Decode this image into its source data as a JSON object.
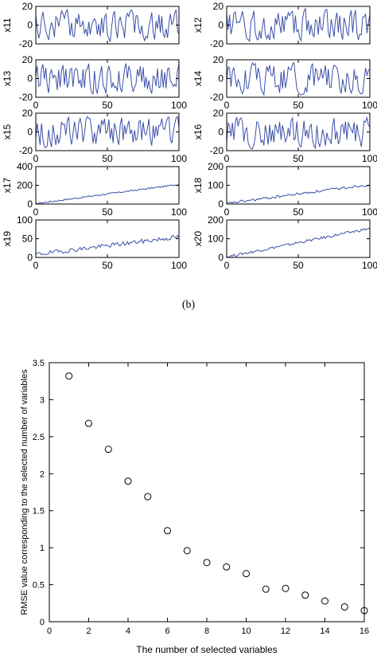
{
  "figure_caption": "(b)",
  "chart_data": [
    {
      "type": "line",
      "ylabel": "x11",
      "xlim": [
        0,
        100
      ],
      "ylim": [
        -20,
        20
      ],
      "xticks": [
        0,
        50,
        100
      ],
      "yticks": [
        -20,
        0,
        20
      ],
      "xtick_labels_visible": false,
      "pattern": "oscillating",
      "amplitude": 19,
      "seed": 11
    },
    {
      "type": "line",
      "ylabel": "x12",
      "xlim": [
        0,
        100
      ],
      "ylim": [
        -20,
        20
      ],
      "xticks": [
        0,
        50,
        100
      ],
      "yticks": [
        -20,
        0,
        20
      ],
      "xtick_labels_visible": false,
      "pattern": "oscillating",
      "amplitude": 19,
      "seed": 12
    },
    {
      "type": "line",
      "ylabel": "x13",
      "xlim": [
        0,
        100
      ],
      "ylim": [
        -20,
        20
      ],
      "xticks": [
        0,
        50,
        100
      ],
      "yticks": [
        -20,
        0,
        20
      ],
      "xtick_labels_visible": true,
      "pattern": "oscillating",
      "amplitude": 19,
      "seed": 13
    },
    {
      "type": "line",
      "ylabel": "x14",
      "xlim": [
        0,
        100
      ],
      "ylim": [
        -20,
        20
      ],
      "xticks": [
        0,
        50,
        100
      ],
      "yticks": [
        -20,
        0,
        20
      ],
      "xtick_labels_visible": true,
      "pattern": "oscillating",
      "amplitude": 19,
      "seed": 14
    },
    {
      "type": "line",
      "ylabel": "x15",
      "xlim": [
        0,
        100
      ],
      "ylim": [
        -20,
        20
      ],
      "xticks": [
        0,
        50,
        100
      ],
      "yticks": [
        -20,
        0,
        20
      ],
      "xtick_labels_visible": true,
      "pattern": "oscillating",
      "amplitude": 19,
      "seed": 15
    },
    {
      "type": "line",
      "ylabel": "x16",
      "xlim": [
        0,
        100
      ],
      "ylim": [
        -20,
        20
      ],
      "xticks": [
        0,
        50,
        100
      ],
      "yticks": [
        -20,
        0,
        20
      ],
      "xtick_labels_visible": true,
      "pattern": "oscillating",
      "amplitude": 19,
      "seed": 16
    },
    {
      "type": "line",
      "ylabel": "x17",
      "xlim": [
        0,
        100
      ],
      "ylim": [
        0,
        400
      ],
      "xticks": [
        0,
        50,
        100
      ],
      "yticks": [
        0,
        200,
        400
      ],
      "xtick_labels_visible": true,
      "pattern": "trend",
      "start": 5,
      "end": 210,
      "noise": 8,
      "seed": 17
    },
    {
      "type": "line",
      "ylabel": "x18",
      "xlim": [
        0,
        100
      ],
      "ylim": [
        0,
        200
      ],
      "xticks": [
        0,
        50,
        100
      ],
      "yticks": [
        0,
        100,
        200
      ],
      "xtick_labels_visible": true,
      "pattern": "trend",
      "start": 3,
      "end": 105,
      "noise": 7,
      "seed": 18
    },
    {
      "type": "line",
      "ylabel": "x19",
      "xlim": [
        0,
        100
      ],
      "ylim": [
        0,
        100
      ],
      "xticks": [
        0,
        50,
        100
      ],
      "yticks": [
        0,
        50,
        100
      ],
      "xtick_labels_visible": true,
      "pattern": "trend",
      "start": 8,
      "end": 55,
      "noise": 6,
      "seed": 19
    },
    {
      "type": "line",
      "ylabel": "x20",
      "xlim": [
        0,
        100
      ],
      "ylim": [
        0,
        200
      ],
      "xticks": [
        0,
        50,
        100
      ],
      "yticks": [
        0,
        100,
        200
      ],
      "xtick_labels_visible": true,
      "pattern": "trend",
      "start": 3,
      "end": 155,
      "noise": 7,
      "seed": 20
    },
    {
      "type": "scatter",
      "xlabel": "The number of selected variables",
      "ylabel": "RMSE value corresponding to the selected number of variables",
      "xlim": [
        0,
        16
      ],
      "ylim": [
        0,
        3.5
      ],
      "xticks": [
        0,
        2,
        4,
        6,
        8,
        10,
        12,
        14,
        16
      ],
      "yticks": [
        0,
        0.5,
        1,
        1.5,
        2,
        2.5,
        3,
        3.5
      ],
      "x": [
        1,
        2,
        3,
        4,
        5,
        6,
        7,
        8,
        9,
        10,
        11,
        12,
        13,
        14,
        15,
        16
      ],
      "y": [
        3.32,
        2.68,
        2.33,
        1.9,
        1.69,
        1.23,
        0.96,
        0.8,
        0.74,
        0.65,
        0.44,
        0.45,
        0.36,
        0.28,
        0.2,
        0.15
      ],
      "marker": "open-circle"
    }
  ],
  "colors": {
    "line": "#3c4fa8",
    "axis": "#000000",
    "background": "#ffffff"
  }
}
